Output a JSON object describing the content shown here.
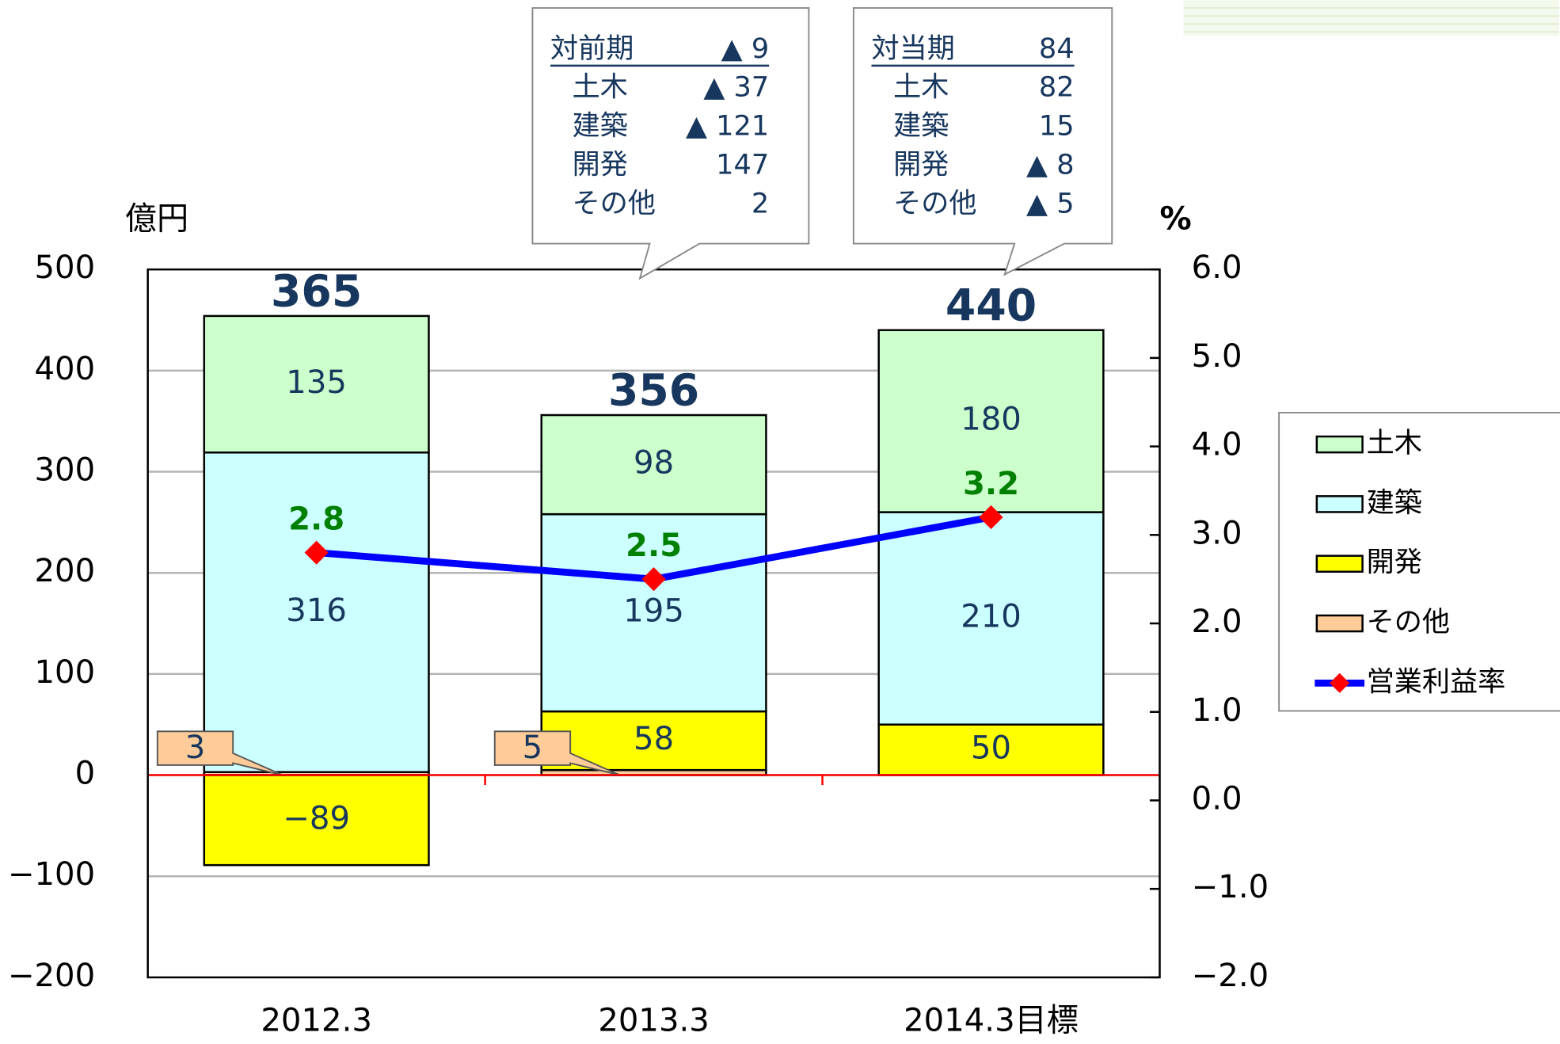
{
  "chart_data": {
    "type": "bar",
    "y_label": "億円",
    "y2_label": "%",
    "categories": [
      "2012.3",
      "2013.3",
      "2014.3目標"
    ],
    "series": [
      {
        "name": "土木",
        "color": "#ccffcc",
        "values": [
          135,
          98,
          180
        ]
      },
      {
        "name": "建築",
        "color": "#ccffff",
        "values": [
          316,
          195,
          210
        ]
      },
      {
        "name": "開発",
        "color": "#ffff00",
        "values": [
          -89,
          58,
          50
        ],
        "value_labels": [
          "−89",
          "58",
          "50"
        ]
      },
      {
        "name": "その他",
        "color": "#ffcc99",
        "values": [
          3,
          5,
          null
        ]
      },
      {
        "name": "営業利益率",
        "type": "line",
        "axis": "y2",
        "color": "#0000ff",
        "marker_color": "#ff0000",
        "values": [
          2.8,
          2.5,
          3.2
        ]
      }
    ],
    "totals": [
      365,
      356,
      440
    ],
    "ylim": [
      -200,
      500
    ],
    "yticks": [
      {
        "value": -200,
        "label": "−200"
      },
      {
        "value": -100,
        "label": "−100"
      },
      0,
      100,
      200,
      300,
      400,
      500
    ],
    "y2lim": [
      -2,
      6
    ],
    "y2ticks": [
      {
        "value": -2,
        "label": "−2.0"
      },
      {
        "value": -1,
        "label": "−1.0"
      },
      {
        "value": 0,
        "label": "0.0"
      },
      {
        "value": 1,
        "label": "1.0"
      },
      {
        "value": 2,
        "label": "2.0"
      },
      {
        "value": 3,
        "label": "3.0"
      },
      {
        "value": 4,
        "label": "4.0"
      },
      {
        "value": 5,
        "label": "5.0"
      },
      {
        "value": 6,
        "label": "6.0"
      }
    ],
    "grid": true,
    "legend": "right",
    "callouts": [
      {
        "rows": [
          {
            "label": "対前期",
            "value": "▲ 9"
          },
          {
            "label": "土木",
            "value": "▲ 37"
          },
          {
            "label": "建築",
            "value": "▲ 121"
          },
          {
            "label": "開発",
            "value": "147"
          },
          {
            "label": "その他",
            "value": "2"
          }
        ]
      },
      {
        "rows": [
          {
            "label": "対当期",
            "value": "84"
          },
          {
            "label": "土木",
            "value": "82"
          },
          {
            "label": "建築",
            "value": "15"
          },
          {
            "label": "開発",
            "value": "▲ 8"
          },
          {
            "label": "その他",
            "value": "▲ 5"
          }
        ]
      }
    ]
  }
}
